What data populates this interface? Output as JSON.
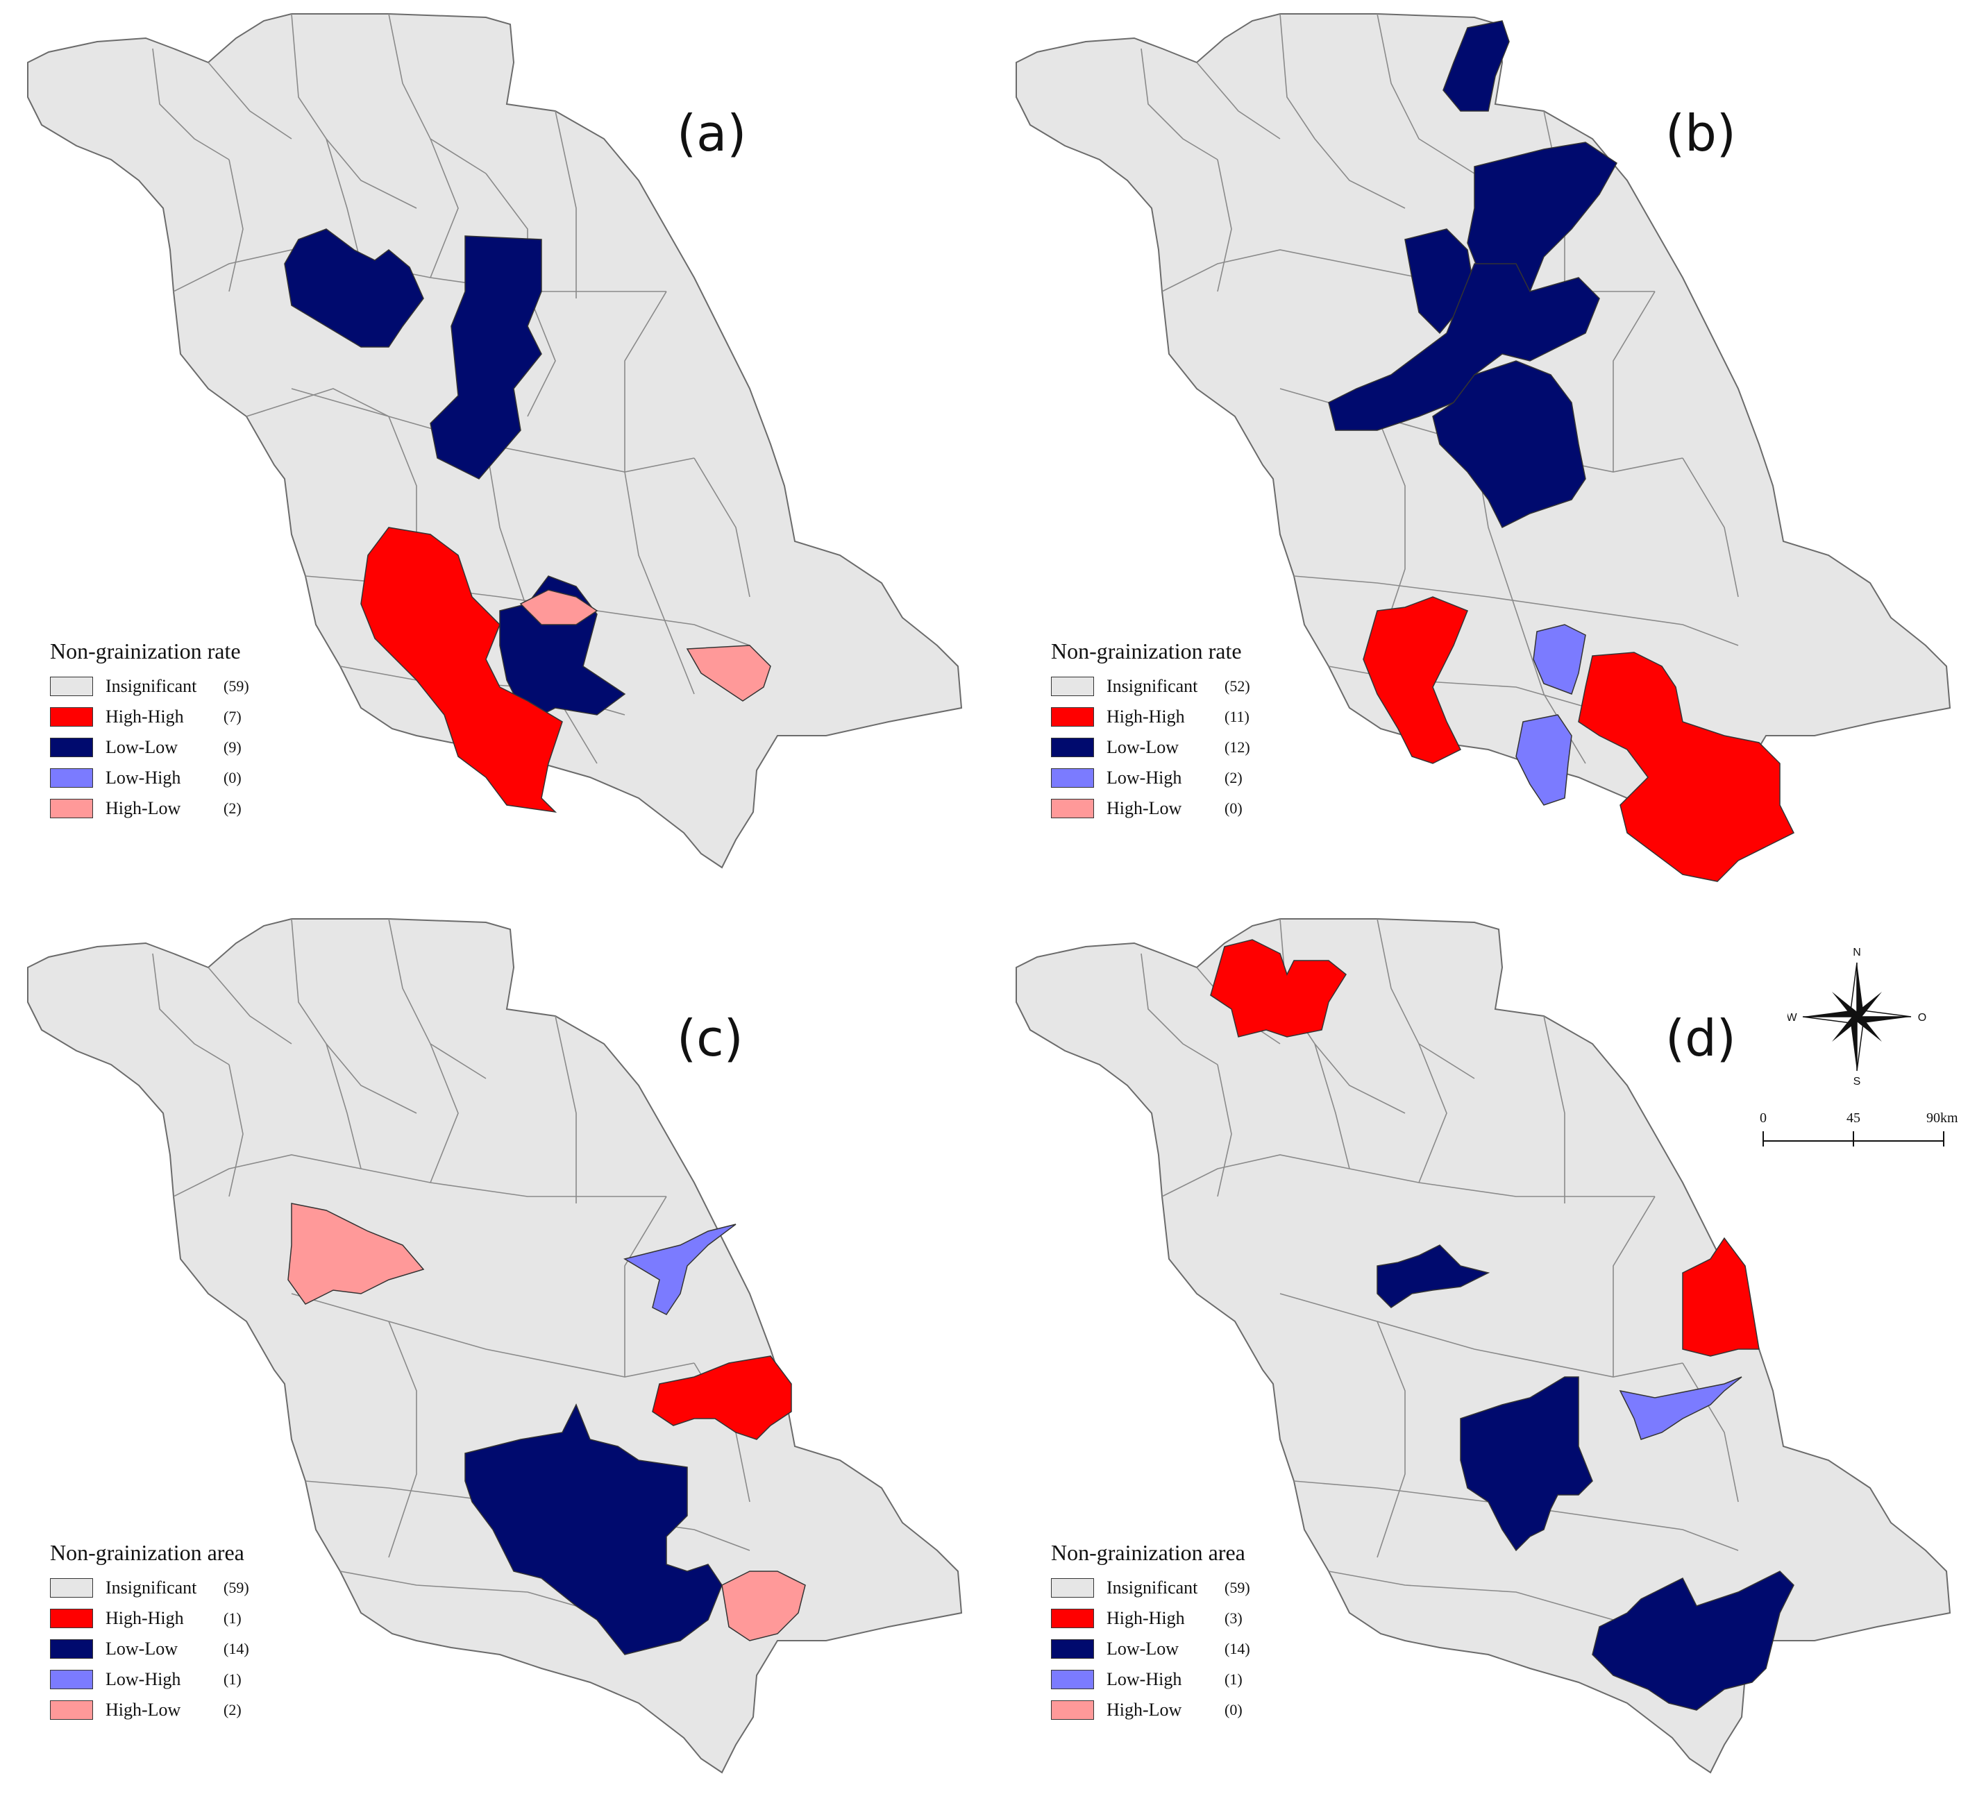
{
  "colors": {
    "insignificant": "#e6e6e6",
    "high_high": "#ff0000",
    "low_low": "#000a6e",
    "low_high": "#7b7bff",
    "high_low": "#ff9999",
    "border": "#6b6b6b"
  },
  "panels": [
    {
      "label": "(a)",
      "legend": {
        "title": "Non-grainization rate",
        "items": [
          {
            "name": "Insignificant",
            "count": "(59)",
            "color_key": "insignificant"
          },
          {
            "name": "High-High",
            "count": "(7)",
            "color_key": "high_high"
          },
          {
            "name": "Low-Low",
            "count": "(9)",
            "color_key": "low_low"
          },
          {
            "name": "Low-High",
            "count": "(0)",
            "color_key": "low_high"
          },
          {
            "name": "High-Low",
            "count": "(2)",
            "color_key": "high_low"
          }
        ]
      }
    },
    {
      "label": "(b)",
      "legend": {
        "title": "Non-grainization rate",
        "items": [
          {
            "name": "Insignificant",
            "count": "(52)",
            "color_key": "insignificant"
          },
          {
            "name": "High-High",
            "count": "(11)",
            "color_key": "high_high"
          },
          {
            "name": "Low-Low",
            "count": "(12)",
            "color_key": "low_low"
          },
          {
            "name": "Low-High",
            "count": "(2)",
            "color_key": "low_high"
          },
          {
            "name": "High-Low",
            "count": "(0)",
            "color_key": "high_low"
          }
        ]
      }
    },
    {
      "label": "(c)",
      "legend": {
        "title": "Non-grainization area",
        "items": [
          {
            "name": "Insignificant",
            "count": "(59)",
            "color_key": "insignificant"
          },
          {
            "name": "High-High",
            "count": "(1)",
            "color_key": "high_high"
          },
          {
            "name": "Low-Low",
            "count": "(14)",
            "color_key": "low_low"
          },
          {
            "name": "Low-High",
            "count": "(1)",
            "color_key": "low_high"
          },
          {
            "name": "High-Low",
            "count": "(2)",
            "color_key": "high_low"
          }
        ]
      }
    },
    {
      "label": "(d)",
      "legend": {
        "title": "Non-grainization area",
        "items": [
          {
            "name": "Insignificant",
            "count": "(59)",
            "color_key": "insignificant"
          },
          {
            "name": "High-High",
            "count": "(3)",
            "color_key": "high_high"
          },
          {
            "name": "Low-Low",
            "count": "(14)",
            "color_key": "low_low"
          },
          {
            "name": "Low-High",
            "count": "(1)",
            "color_key": "low_high"
          },
          {
            "name": "High-Low",
            "count": "(0)",
            "color_key": "high_low"
          }
        ]
      }
    }
  ],
  "compass": {
    "n": "N",
    "s": "S",
    "w": "W",
    "e": "O"
  },
  "scale": {
    "ticks": [
      "0",
      "45",
      "90km"
    ]
  }
}
